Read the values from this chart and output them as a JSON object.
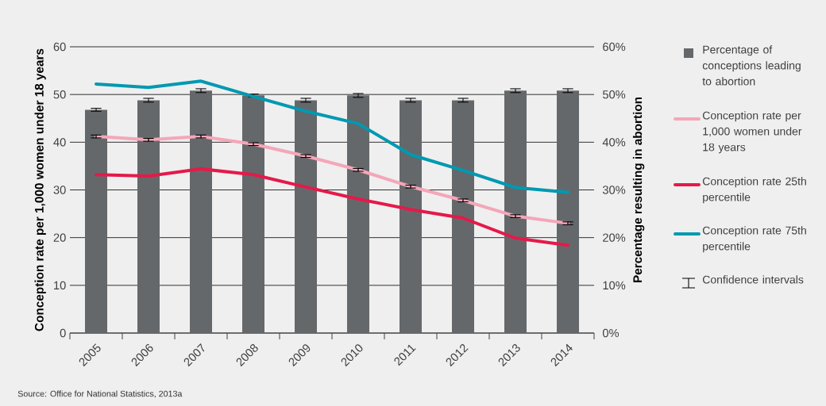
{
  "chart_data": {
    "type": "bar",
    "ylabel": "Conception rate per 1,000 women under 18 years",
    "y2label": "Percentage resulting in abortion",
    "categories": [
      "2005",
      "2006",
      "2007",
      "2008",
      "2009",
      "2010",
      "2011",
      "2012",
      "2013",
      "2014"
    ],
    "series": [
      {
        "name": "Percentage of conceptions leading to abortion",
        "axis": "y2",
        "color": "#65686b",
        "values": [
          46.8,
          48.8,
          50.8,
          49.8,
          48.8,
          49.8,
          48.8,
          48.8,
          50.8,
          50.8
        ],
        "errors": [
          0.3,
          0.4,
          0.4,
          0.3,
          0.4,
          0.4,
          0.4,
          0.4,
          0.4,
          0.4
        ]
      },
      {
        "name": "Conception rate per 1,000 women under 18 years",
        "type": "line",
        "color": "#f4a7b9",
        "values": [
          41.2,
          40.5,
          41.2,
          39.6,
          37.1,
          34.2,
          30.7,
          27.8,
          24.5,
          23.0
        ],
        "errors": [
          0.3,
          0.3,
          0.3,
          0.3,
          0.3,
          0.3,
          0.3,
          0.3,
          0.3,
          0.3
        ]
      },
      {
        "name": "Conception rate 25th percentile",
        "type": "line",
        "color": "#e5194a",
        "values": [
          33.2,
          32.9,
          34.4,
          33.2,
          30.6,
          28.1,
          25.9,
          24.1,
          19.9,
          18.4
        ]
      },
      {
        "name": "Conception rate 75th percentile",
        "type": "line",
        "color": "#0099b1",
        "values": [
          52.2,
          51.5,
          52.8,
          49.6,
          46.5,
          43.9,
          37.4,
          34.1,
          30.5,
          29.5
        ]
      }
    ],
    "ylim": [
      0,
      60
    ],
    "yticks": [
      0,
      10,
      20,
      30,
      40,
      50,
      60
    ],
    "y2lim": [
      0,
      60
    ],
    "y2ticks": [
      {
        "value": 0,
        "label": "0%"
      },
      {
        "value": 10,
        "label": "10%"
      },
      {
        "value": 20,
        "label": "20%"
      },
      {
        "value": 30,
        "label": "30%"
      },
      {
        "value": 40,
        "label": "40%"
      },
      {
        "value": 50,
        "label": "50%"
      },
      {
        "value": 60,
        "label": "60%"
      }
    ],
    "grid": "y",
    "legend": "right",
    "line_style": "solid",
    "annotations": [
      "Source: Office for National Statistics, 2013a",
      "Confidence intervals"
    ]
  }
}
